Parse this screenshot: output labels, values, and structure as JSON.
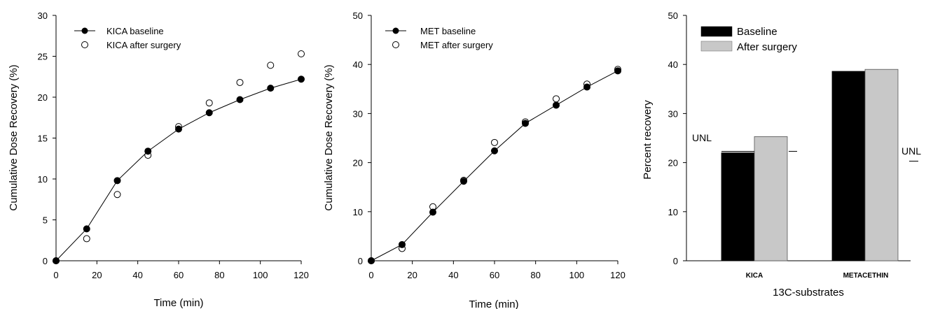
{
  "chart_data": [
    {
      "type": "scatter",
      "xlabel": "Time (min)",
      "ylabel": "Cumulative Dose Recovery (%)",
      "xlim": [
        0,
        120
      ],
      "ylim": [
        0,
        30
      ],
      "x_ticks": [
        "0",
        "20",
        "40",
        "60",
        "80",
        "100",
        "120"
      ],
      "y_ticks": [
        "0",
        "5",
        "10",
        "15",
        "20",
        "25",
        "30"
      ],
      "legend_position": "top-left",
      "grid": false,
      "series": [
        {
          "name": "KICA baseline",
          "marker": "filled-circle",
          "line": true,
          "color": "#000000",
          "x": [
            0,
            15,
            30,
            45,
            60,
            75,
            90,
            105,
            120
          ],
          "y": [
            0,
            3.9,
            9.8,
            13.4,
            16.1,
            18.1,
            19.7,
            21.1,
            22.2
          ]
        },
        {
          "name": "KICA after surgery",
          "marker": "open-circle",
          "line": false,
          "color": "#000000",
          "x": [
            0,
            15,
            30,
            45,
            60,
            75,
            90,
            105,
            120
          ],
          "y": [
            0,
            2.7,
            8.1,
            12.9,
            16.4,
            19.3,
            21.8,
            23.9,
            25.3
          ]
        }
      ]
    },
    {
      "type": "scatter",
      "xlabel": "Time (min)",
      "ylabel": "Cumulative Dose Recovery (%)",
      "xlim": [
        0,
        120
      ],
      "ylim": [
        0,
        50
      ],
      "x_ticks": [
        "0",
        "20",
        "40",
        "60",
        "80",
        "100",
        "120"
      ],
      "y_ticks": [
        "0",
        "10",
        "20",
        "30",
        "40",
        "50"
      ],
      "legend_position": "top-left",
      "grid": false,
      "series": [
        {
          "name": "MET baseline",
          "marker": "filled-circle",
          "line": true,
          "color": "#000000",
          "x": [
            0,
            15,
            30,
            45,
            60,
            75,
            90,
            105,
            120
          ],
          "y": [
            0,
            3.3,
            9.9,
            16.2,
            22.4,
            28.0,
            31.7,
            35.4,
            38.7
          ]
        },
        {
          "name": "MET after surgery",
          "marker": "open-circle",
          "line": false,
          "color": "#000000",
          "x": [
            0,
            15,
            30,
            45,
            60,
            75,
            90,
            105,
            120
          ],
          "y": [
            0,
            2.5,
            11.0,
            16.4,
            24.1,
            28.3,
            33.0,
            36.0,
            39.0
          ]
        }
      ]
    },
    {
      "type": "bar",
      "xlabel": "13C-substrates",
      "ylabel": "Percent recovery",
      "ylim": [
        0,
        50
      ],
      "y_ticks": [
        "0",
        "10",
        "20",
        "30",
        "40",
        "50"
      ],
      "categories": [
        "KICA",
        "METACETHIN"
      ],
      "legend_position": "top-left",
      "grid": false,
      "series": [
        {
          "name": "Baseline",
          "color": "#000000",
          "values": [
            22.0,
            38.6
          ]
        },
        {
          "name": "After surgery",
          "color": "#c8c8c8",
          "values": [
            25.3,
            39.0
          ]
        }
      ],
      "annotations": [
        {
          "text": "UNL",
          "value": 22.3,
          "category": "KICA"
        },
        {
          "text": "UNL",
          "value": 20.3,
          "category": "METACETHIN"
        }
      ]
    }
  ]
}
